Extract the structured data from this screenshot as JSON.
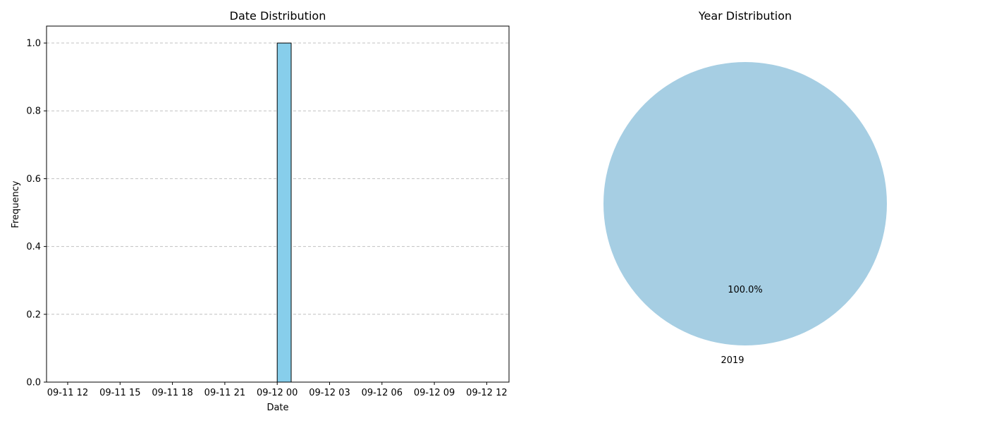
{
  "chart_data": [
    {
      "type": "bar",
      "title": "Date Distribution",
      "xlabel": "Date",
      "ylabel": "Frequency",
      "x_ticks": [
        "09-11 12",
        "09-11 15",
        "09-11 18",
        "09-11 21",
        "09-12 00",
        "09-12 03",
        "09-12 06",
        "09-12 09",
        "09-12 12"
      ],
      "y_ticks": [
        "0.0",
        "0.2",
        "0.4",
        "0.6",
        "0.8",
        "1.0"
      ],
      "ylim": [
        0,
        1.05
      ],
      "bars": [
        {
          "x_start": "09-12 00:00",
          "x_end": "09-12 00:48",
          "value": 1.0
        }
      ],
      "grid": "y, dashed",
      "bar_color": "#87ceeb",
      "edge_color": "#000000"
    },
    {
      "type": "pie",
      "title": "Year Distribution",
      "slices": [
        {
          "label": "2019",
          "value": 100.0,
          "pct_label": "100.0%",
          "color": "#a6cee3"
        }
      ]
    }
  ]
}
